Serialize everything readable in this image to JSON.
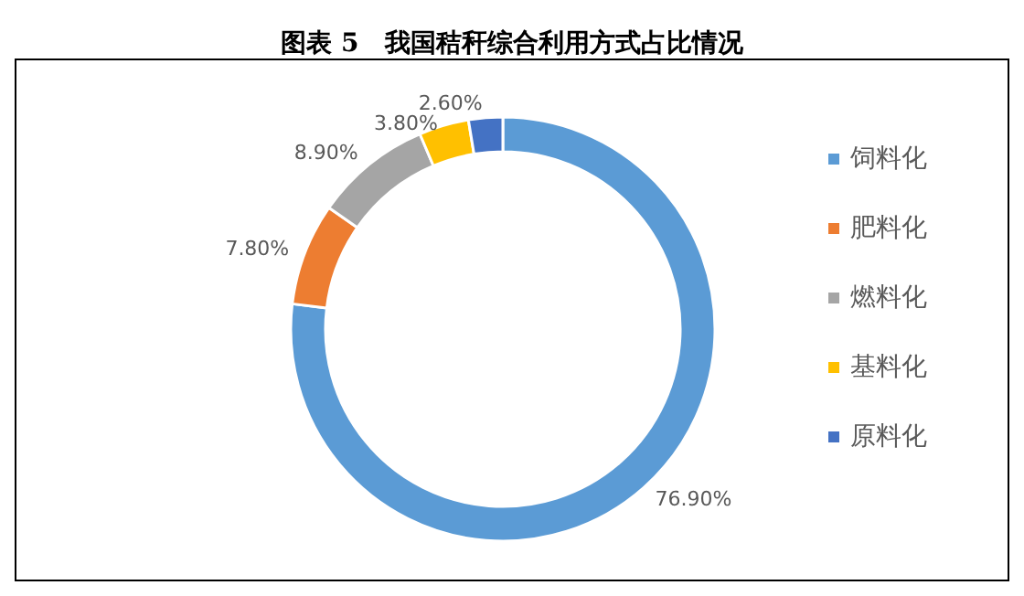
{
  "chart_data": {
    "type": "donut",
    "title": "图表 5　我国秸秆综合利用方式占比情况",
    "categories": [
      "饲料化",
      "肥料化",
      "燃料化",
      "基料化",
      "原料化"
    ],
    "values": [
      76.9,
      7.8,
      8.9,
      3.8,
      2.6
    ],
    "colors": [
      "#5b9bd5",
      "#ed7d31",
      "#a5a5a5",
      "#ffc000",
      "#4472c4"
    ],
    "value_labels": [
      "76.90%",
      "7.80%",
      "8.90%",
      "3.80%",
      "2.60%"
    ],
    "legend": "right",
    "marker": "square"
  }
}
